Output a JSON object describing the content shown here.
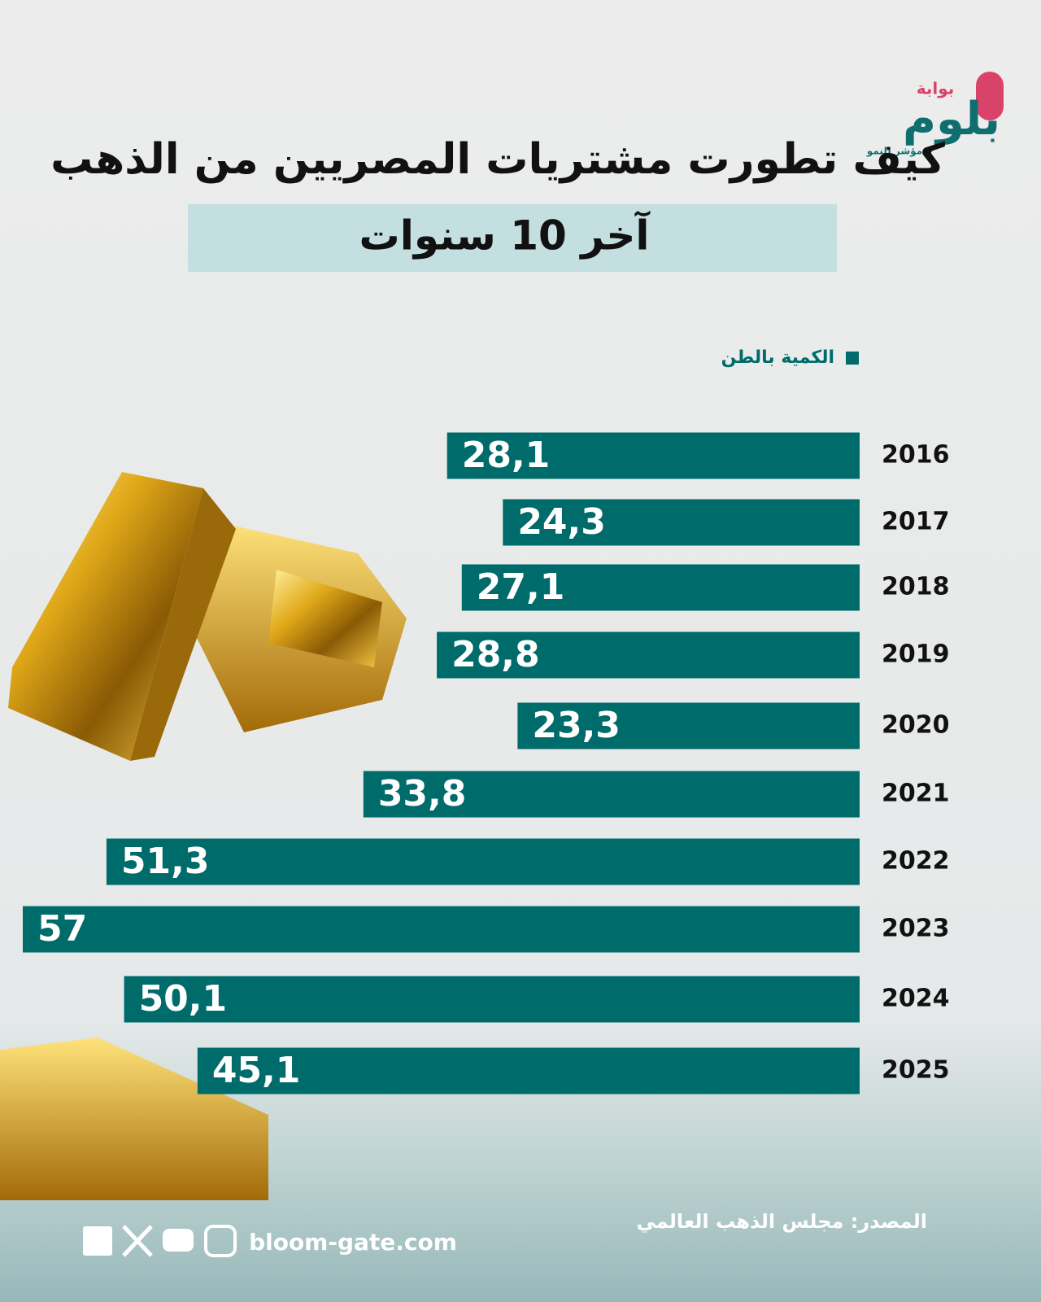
{
  "logo": {
    "top": "بوابة",
    "name": "بلوم",
    "tagline": "مؤشر للنمو"
  },
  "chart_data": {
    "type": "bar",
    "orientation": "horizontal",
    "title": "كيف تطورت مشتريات المصريين من الذهب",
    "subtitle": "آخر 10 سنوات",
    "categories": [
      "2016",
      "2017",
      "2018",
      "2019",
      "2020",
      "2021",
      "2022",
      "2023",
      "2024",
      "2025"
    ],
    "series": [
      {
        "name": "الكمية بالطن",
        "color": "#006b6b",
        "values": [
          28.1,
          24.3,
          27.1,
          28.8,
          23.3,
          33.8,
          51.3,
          57,
          50.1,
          45.1
        ],
        "value_labels": [
          "28,1",
          "24,3",
          "27,1",
          "28,8",
          "23,3",
          "33,8",
          "51,3",
          "57",
          "50,1",
          "45,1"
        ]
      }
    ]
  },
  "footer": {
    "source": "المصدر: مجلس الذهب العالمي",
    "website": "bloom-gate.com"
  }
}
